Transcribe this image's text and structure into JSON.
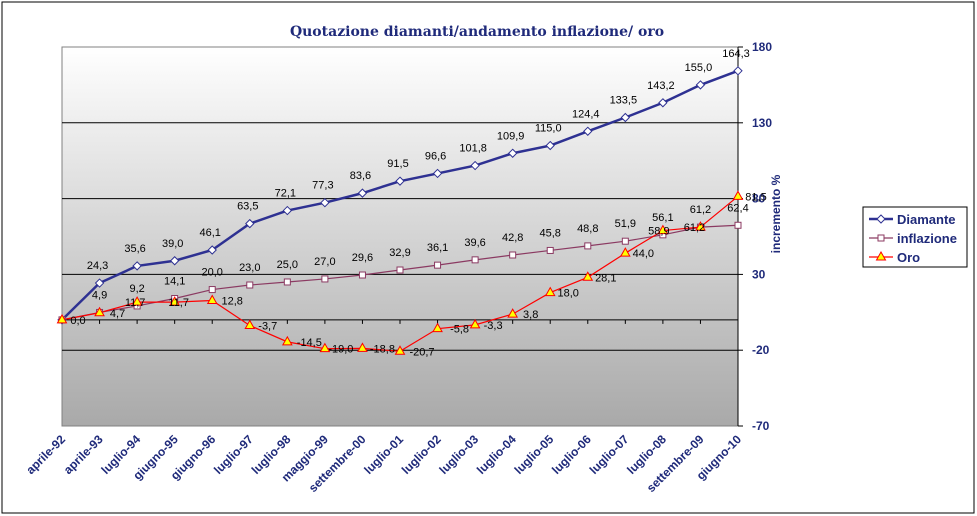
{
  "chart_data": {
    "type": "line",
    "title": "Quotazione diamanti/andamento inflazione/ oro",
    "xlabel": "",
    "ylabel": "incremento %",
    "ylim": [
      -70,
      180
    ],
    "yticks": [
      -70,
      -20,
      30,
      80,
      130,
      180
    ],
    "gridlines": [
      -20,
      30,
      80,
      130
    ],
    "categories": [
      "aprile-92",
      "aprile-93",
      "luglio-94",
      "giugno-95",
      "giugno-96",
      "luglio-97",
      "luglio-98",
      "maggio-99",
      "settembre-00",
      "luglio-01",
      "luglio-02",
      "luglio-03",
      "luglio-04",
      "luglio-05",
      "luglio-06",
      "luglio-07",
      "luglio-08",
      "settembre-09",
      "giugno-10"
    ],
    "series": [
      {
        "name": "Diamante",
        "color": "#2e3192",
        "marker": "diamond",
        "x": [
          0,
          1,
          2,
          3,
          4,
          5,
          6,
          7,
          8,
          9,
          10,
          11,
          12,
          13,
          14,
          15,
          16,
          17,
          18
        ],
        "values": [
          0.0,
          24.3,
          35.6,
          39.0,
          46.1,
          63.5,
          72.1,
          77.3,
          83.6,
          91.5,
          96.6,
          101.8,
          109.9,
          115.0,
          124.4,
          133.5,
          143.2,
          155.0,
          164.3
        ],
        "labels": [
          "",
          "24,3",
          "35,6",
          "39,0",
          "46,1",
          "63,5",
          "72,1",
          "77,3",
          "83,6",
          "91,5",
          "96,6",
          "101,8",
          "109,9",
          "115,0",
          "124,4",
          "133,5",
          "143,2",
          "155,0",
          "164,3"
        ]
      },
      {
        "name": "inflazione",
        "color": "#8b3a62",
        "marker": "square",
        "x": [
          0,
          1,
          2,
          3,
          4,
          5,
          6,
          7,
          8,
          9,
          10,
          11,
          12,
          13,
          14,
          15,
          16,
          17,
          18
        ],
        "values": [
          0.0,
          4.9,
          9.2,
          14.1,
          20.0,
          23.0,
          25.0,
          27.0,
          29.6,
          32.9,
          36.1,
          39.6,
          42.8,
          45.8,
          48.8,
          51.9,
          56.1,
          61.2,
          62.4
        ],
        "labels": [
          "0,0",
          "4,9",
          "9,2",
          "14,1",
          "20,0",
          "23,0",
          "25,0",
          "27,0",
          "29,6",
          "32,9",
          "36,1",
          "39,6",
          "42,8",
          "45,8",
          "48,8",
          "51,9",
          "56,1",
          "61,2",
          "62,4"
        ]
      },
      {
        "name": "Oro",
        "color": "#ff0000",
        "fill": "#ffff00",
        "marker": "triangle",
        "x": [
          0,
          1,
          2,
          3,
          4,
          5,
          6,
          7,
          8,
          9,
          10,
          11,
          12,
          13,
          14,
          15,
          16,
          17,
          18
        ],
        "values": [
          0.0,
          4.7,
          11.7,
          11.7,
          12.8,
          -3.7,
          -14.5,
          -19.0,
          -18.8,
          -20.7,
          -5.8,
          -3.3,
          3.8,
          18.0,
          28.1,
          44.0,
          58.9,
          61.2,
          81.5
        ],
        "labels": [
          "",
          "4,7",
          "11,7",
          "11,7",
          "12,8",
          "-3,7",
          "-14,5",
          "-19,0",
          "-18,8",
          "-20,7",
          "-5,8",
          "-3,3",
          "3,8",
          "18,0",
          "28,1",
          "44,0",
          "58,9",
          "61,2",
          "81,5"
        ]
      }
    ],
    "legend": {
      "position": "right",
      "entries": [
        "Diamante",
        "inflazione",
        "Oro"
      ]
    }
  }
}
